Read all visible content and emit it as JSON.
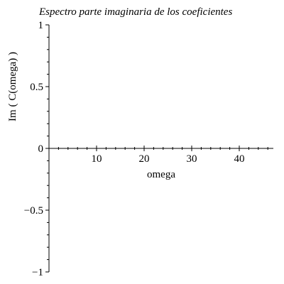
{
  "chart_data": {
    "type": "line",
    "title": "Espectro parte imaginaria de los coeficientes",
    "xlabel": "omega",
    "ylabel": "Im ( C(omega) )",
    "x_ticks": [
      10,
      20,
      30,
      40
    ],
    "x_tick_labels": [
      "10",
      "20",
      "30",
      "40"
    ],
    "y_ticks": [
      1,
      0.5,
      0,
      -0.5,
      -1
    ],
    "y_tick_labels": [
      "1",
      "0.5",
      "0",
      "−0.5",
      "−1"
    ],
    "xlim": [
      0,
      47
    ],
    "ylim": [
      -1,
      1
    ],
    "grid": false,
    "legend": "none",
    "series": [
      {
        "x": [
          0,
          47
        ],
        "y": [
          0,
          0
        ]
      }
    ]
  }
}
